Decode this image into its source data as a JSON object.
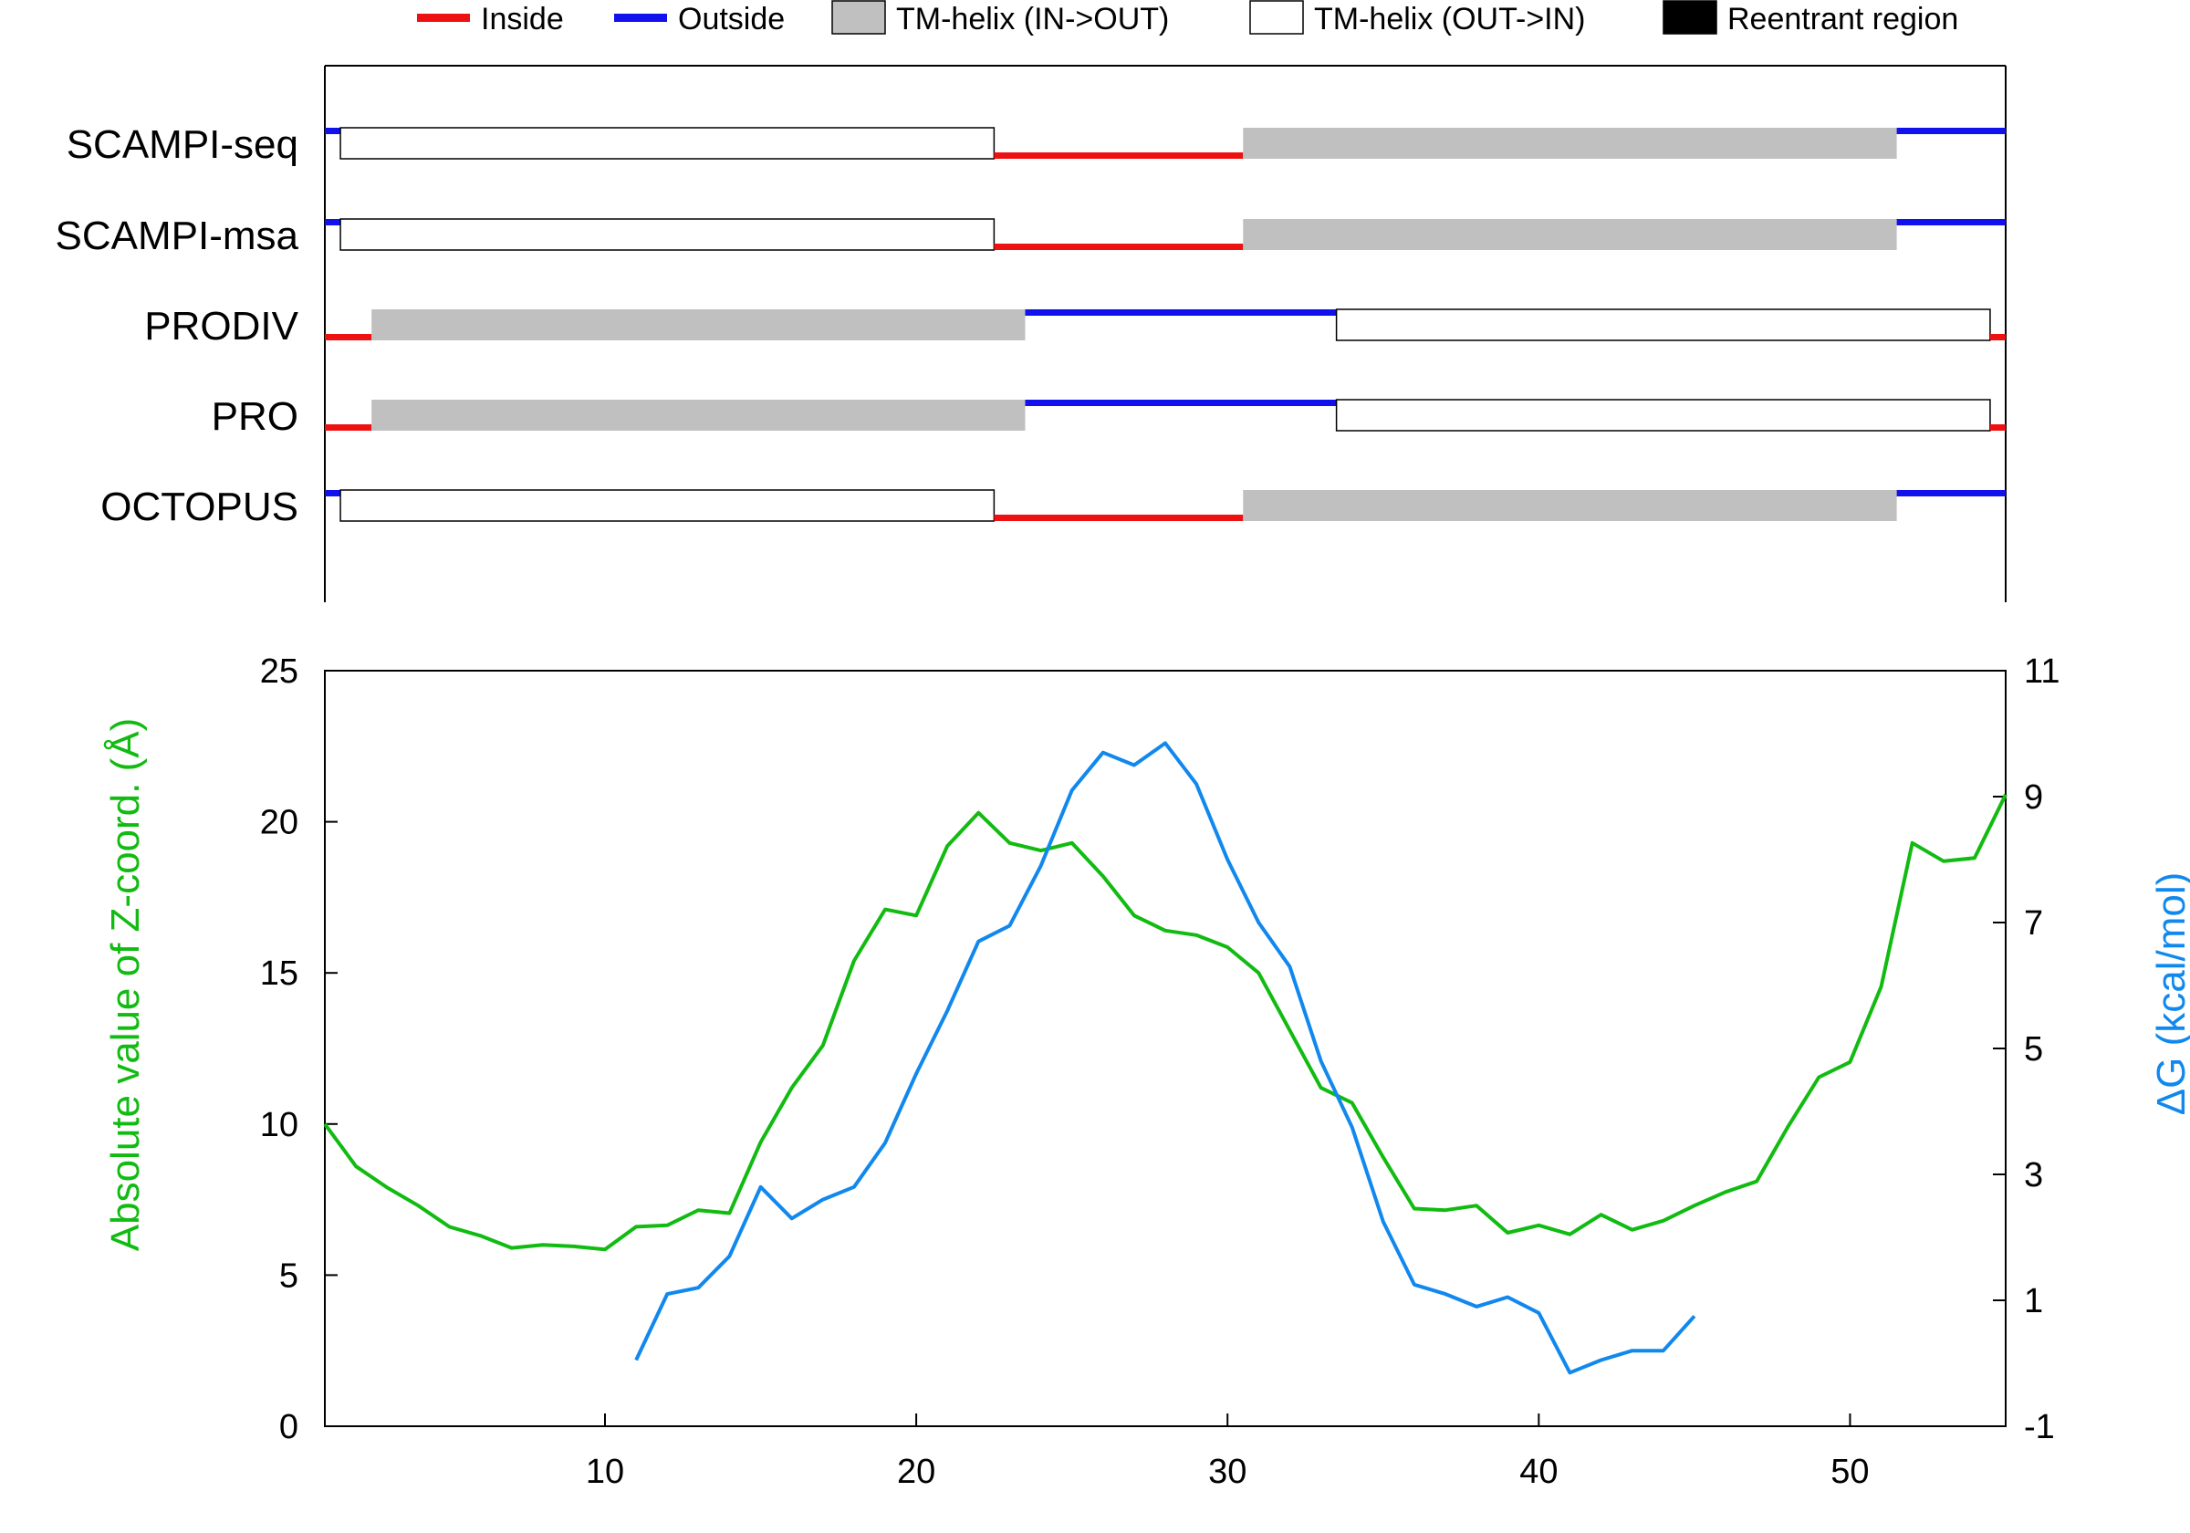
{
  "chart_data": {
    "type": "line",
    "legend": {
      "placement": "top",
      "items": [
        {
          "label": "Inside",
          "color": "#ee1111",
          "kind": "line"
        },
        {
          "label": "Outside",
          "color": "#1111ee",
          "kind": "line"
        },
        {
          "label": "TM-helix (IN->OUT)",
          "color": "#c0c0c0",
          "kind": "box"
        },
        {
          "label": "TM-helix (OUT->IN)",
          "color": "#ffffff",
          "kind": "box"
        },
        {
          "label": "Reentrant region",
          "color": "#000000",
          "kind": "box"
        }
      ]
    },
    "topology": {
      "x_range": [
        1,
        55
      ],
      "tracks": [
        {
          "name": "SCAMPI-seq",
          "segments": [
            {
              "type": "outside",
              "start": 1,
              "end": 1.5
            },
            {
              "type": "tm_out_in",
              "start": 1.5,
              "end": 22.5
            },
            {
              "type": "inside",
              "start": 22.5,
              "end": 30.5
            },
            {
              "type": "tm_in_out",
              "start": 30.5,
              "end": 51.5
            },
            {
              "type": "outside",
              "start": 51.5,
              "end": 55
            }
          ]
        },
        {
          "name": "SCAMPI-msa",
          "segments": [
            {
              "type": "outside",
              "start": 1,
              "end": 1.5
            },
            {
              "type": "tm_out_in",
              "start": 1.5,
              "end": 22.5
            },
            {
              "type": "inside",
              "start": 22.5,
              "end": 30.5
            },
            {
              "type": "tm_in_out",
              "start": 30.5,
              "end": 51.5
            },
            {
              "type": "outside",
              "start": 51.5,
              "end": 55
            }
          ]
        },
        {
          "name": "PRODIV",
          "segments": [
            {
              "type": "inside",
              "start": 1,
              "end": 2.5
            },
            {
              "type": "tm_in_out",
              "start": 2.5,
              "end": 23.5
            },
            {
              "type": "outside",
              "start": 23.5,
              "end": 33.5
            },
            {
              "type": "tm_out_in",
              "start": 33.5,
              "end": 54.5
            },
            {
              "type": "inside",
              "start": 54.5,
              "end": 55
            }
          ]
        },
        {
          "name": "PRO",
          "segments": [
            {
              "type": "inside",
              "start": 1,
              "end": 2.5
            },
            {
              "type": "tm_in_out",
              "start": 2.5,
              "end": 23.5
            },
            {
              "type": "outside",
              "start": 23.5,
              "end": 33.5
            },
            {
              "type": "tm_out_in",
              "start": 33.5,
              "end": 54.5
            },
            {
              "type": "inside",
              "start": 54.5,
              "end": 55
            }
          ]
        },
        {
          "name": "OCTOPUS",
          "segments": [
            {
              "type": "outside",
              "start": 1,
              "end": 1.5
            },
            {
              "type": "tm_out_in",
              "start": 1.5,
              "end": 22.5
            },
            {
              "type": "inside",
              "start": 22.5,
              "end": 30.5
            },
            {
              "type": "tm_in_out",
              "start": 30.5,
              "end": 51.5
            },
            {
              "type": "outside",
              "start": 51.5,
              "end": 55
            }
          ]
        }
      ]
    },
    "xlim": [
      1,
      55
    ],
    "xticks": [
      10,
      20,
      30,
      40,
      50
    ],
    "y_left": {
      "label": "Absolute value of Z-coord. (Å)",
      "color": "#11bb11",
      "lim": [
        0,
        25
      ],
      "ticks": [
        0,
        5,
        10,
        15,
        20,
        25
      ]
    },
    "y_right": {
      "label": "ΔG (kcal/mol)",
      "color": "#1188ee",
      "lim": [
        -1,
        11
      ],
      "ticks": [
        -1,
        1,
        3,
        5,
        7,
        9,
        11
      ]
    },
    "series": [
      {
        "axis": "left",
        "color": "#11bb11",
        "x": [
          1,
          2,
          3,
          4,
          5,
          6,
          7,
          8,
          9,
          10,
          11,
          12,
          13,
          14,
          15,
          16,
          17,
          18,
          19,
          20,
          21,
          22,
          23,
          24,
          25,
          26,
          27,
          28,
          29,
          30,
          31,
          32,
          33,
          34,
          35,
          36,
          37,
          38,
          39,
          40,
          41,
          42,
          43,
          44,
          45,
          46,
          47,
          48,
          49,
          50,
          51,
          52,
          53,
          54,
          55
        ],
        "y": [
          10,
          8.6,
          7.9,
          7.3,
          6.6,
          6.3,
          5.9,
          6.0,
          5.95,
          5.85,
          6.6,
          6.65,
          7.15,
          7.05,
          9.4,
          11.2,
          12.6,
          15.4,
          17.1,
          16.9,
          19.2,
          20.3,
          19.3,
          19.05,
          19.3,
          18.2,
          16.9,
          16.4,
          16.25,
          15.85,
          15.0,
          13.1,
          11.2,
          10.7,
          8.9,
          7.2,
          7.15,
          7.3,
          6.4,
          6.65,
          6.35,
          7.0,
          6.5,
          6.8,
          7.3,
          7.75,
          8.1,
          9.9,
          11.55,
          12.05,
          14.55,
          19.3,
          18.7,
          18.8,
          20.9
        ]
      },
      {
        "axis": "right",
        "color": "#1188ee",
        "x": [
          11,
          12,
          13,
          14,
          15,
          16,
          17,
          18,
          19,
          20,
          21,
          22,
          23,
          24,
          25,
          26,
          27,
          28,
          29,
          30,
          31,
          32,
          33,
          34,
          35,
          36,
          37,
          38,
          39,
          40,
          41,
          42,
          43,
          44,
          45
        ],
        "y": [
          0.05,
          1.1,
          1.2,
          1.7,
          2.8,
          2.3,
          2.6,
          2.8,
          3.5,
          4.6,
          5.6,
          6.7,
          6.95,
          7.9,
          9.1,
          9.7,
          9.5,
          9.85,
          9.2,
          8.0,
          7.0,
          6.3,
          4.8,
          3.75,
          2.25,
          1.25,
          1.1,
          0.9,
          1.05,
          0.8,
          -0.15,
          0.05,
          0.2,
          0.2,
          0.75
        ]
      }
    ]
  }
}
